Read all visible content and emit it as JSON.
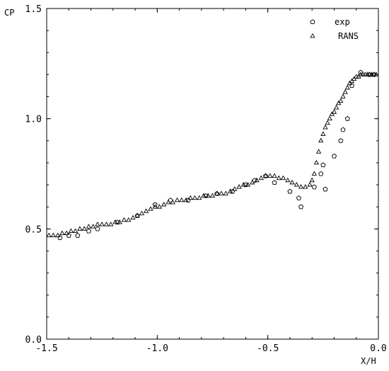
{
  "chart_data": {
    "type": "scatter",
    "xlabel": "X/H",
    "ylabel": "CP",
    "xlim": [
      -1.5,
      0.0
    ],
    "ylim": [
      0.0,
      1.5
    ],
    "xticks": [
      "-1.5",
      "-1.0",
      "-0.5",
      "0.0"
    ],
    "yticks": [
      "0.0",
      "0.5",
      "1.0",
      "1.5"
    ],
    "grid": false,
    "legend_position": "top-right",
    "series": [
      {
        "name": "exp",
        "marker": "pentagon",
        "x": [
          -1.44,
          -1.4,
          -1.36,
          -1.31,
          -1.27,
          -1.18,
          -1.09,
          -1.01,
          -0.94,
          -0.86,
          -0.78,
          -0.73,
          -0.66,
          -0.6,
          -0.56,
          -0.51,
          -0.47,
          -0.4,
          -0.36,
          -0.35,
          -0.29,
          -0.26,
          -0.25,
          -0.24,
          -0.2,
          -0.17,
          -0.16,
          -0.14,
          -0.12,
          -0.08,
          -0.04,
          -0.02
        ],
        "y": [
          0.46,
          0.47,
          0.47,
          0.49,
          0.5,
          0.53,
          0.56,
          0.61,
          0.63,
          0.63,
          0.65,
          0.66,
          0.67,
          0.7,
          0.72,
          0.74,
          0.71,
          0.67,
          0.64,
          0.6,
          0.69,
          0.75,
          0.79,
          0.68,
          0.83,
          0.9,
          0.95,
          1.0,
          1.15,
          1.21,
          1.2,
          1.2
        ]
      },
      {
        "name": "RANS",
        "marker": "triangle",
        "x": [
          -1.49,
          -1.47,
          -1.45,
          -1.43,
          -1.41,
          -1.39,
          -1.37,
          -1.35,
          -1.33,
          -1.31,
          -1.29,
          -1.27,
          -1.25,
          -1.23,
          -1.21,
          -1.19,
          -1.17,
          -1.15,
          -1.13,
          -1.11,
          -1.09,
          -1.07,
          -1.05,
          -1.03,
          -1.01,
          -0.99,
          -0.97,
          -0.95,
          -0.93,
          -0.91,
          -0.89,
          -0.87,
          -0.85,
          -0.83,
          -0.81,
          -0.79,
          -0.77,
          -0.75,
          -0.73,
          -0.71,
          -0.69,
          -0.67,
          -0.65,
          -0.63,
          -0.61,
          -0.59,
          -0.57,
          -0.55,
          -0.53,
          -0.51,
          -0.49,
          -0.47,
          -0.45,
          -0.43,
          -0.41,
          -0.39,
          -0.37,
          -0.35,
          -0.33,
          -0.31,
          -0.3,
          -0.29,
          -0.28,
          -0.27,
          -0.26,
          -0.25,
          -0.24,
          -0.23,
          -0.22,
          -0.21,
          -0.2,
          -0.19,
          -0.18,
          -0.17,
          -0.16,
          -0.15,
          -0.14,
          -0.13,
          -0.12,
          -0.11,
          -0.1,
          -0.09,
          -0.08,
          -0.07,
          -0.06,
          -0.05,
          -0.04,
          -0.03,
          -0.02,
          -0.01
        ],
        "y": [
          0.47,
          0.47,
          0.47,
          0.48,
          0.48,
          0.49,
          0.49,
          0.5,
          0.5,
          0.51,
          0.51,
          0.52,
          0.52,
          0.52,
          0.52,
          0.53,
          0.53,
          0.54,
          0.54,
          0.55,
          0.56,
          0.57,
          0.58,
          0.59,
          0.6,
          0.6,
          0.61,
          0.62,
          0.62,
          0.63,
          0.63,
          0.63,
          0.64,
          0.64,
          0.64,
          0.65,
          0.65,
          0.65,
          0.66,
          0.66,
          0.66,
          0.67,
          0.68,
          0.69,
          0.7,
          0.7,
          0.71,
          0.72,
          0.73,
          0.74,
          0.74,
          0.74,
          0.73,
          0.73,
          0.72,
          0.71,
          0.7,
          0.69,
          0.69,
          0.7,
          0.72,
          0.75,
          0.8,
          0.85,
          0.9,
          0.93,
          0.96,
          0.98,
          1.0,
          1.02,
          1.03,
          1.05,
          1.07,
          1.08,
          1.1,
          1.12,
          1.14,
          1.16,
          1.17,
          1.18,
          1.19,
          1.19,
          1.2,
          1.2,
          1.2,
          1.2,
          1.2,
          1.2,
          1.2,
          1.2
        ]
      }
    ]
  }
}
